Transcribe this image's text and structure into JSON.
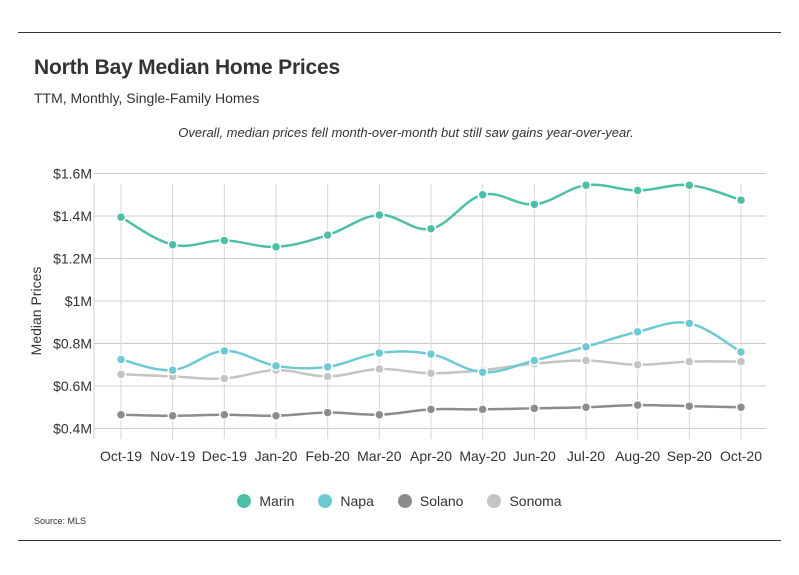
{
  "title": "North Bay Median Home Prices",
  "subtitle": "TTM, Monthly, Single-Family Homes",
  "note": "Overall, median prices fell month-over-month but still saw gains year-over-year.",
  "source": "Source:  MLS",
  "colors": {
    "Marin": "#4dbfa8",
    "Napa": "#6ecad2",
    "Solano": "#8c8c8c",
    "Sonoma": "#c4c4c4"
  },
  "chart_data": {
    "type": "line",
    "title": "North Bay Median Home Prices",
    "subtitle": "TTM, Monthly, Single-Family Homes",
    "ylabel": "Median Prices",
    "xlabel": "",
    "categories": [
      "Oct-19",
      "Nov-19",
      "Dec-19",
      "Jan-20",
      "Feb-20",
      "Mar-20",
      "Apr-20",
      "May-20",
      "Jun-20",
      "Jul-20",
      "Aug-20",
      "Sep-20",
      "Oct-20"
    ],
    "yticks": [
      {
        "value": 0.4,
        "label": "$0.4M"
      },
      {
        "value": 0.6,
        "label": "$0.6M"
      },
      {
        "value": 0.8,
        "label": "$0.8M"
      },
      {
        "value": 1.0,
        "label": "$1M"
      },
      {
        "value": 1.2,
        "label": "$1.2M"
      },
      {
        "value": 1.4,
        "label": "$1.4M"
      },
      {
        "value": 1.6,
        "label": "$1.6M"
      }
    ],
    "ylim": [
      0.35,
      1.6
    ],
    "grid": true,
    "legend_position": "bottom",
    "series": [
      {
        "name": "Marin",
        "values": [
          1.395,
          1.265,
          1.285,
          1.255,
          1.31,
          1.405,
          1.34,
          1.5,
          1.455,
          1.545,
          1.52,
          1.545,
          1.475
        ]
      },
      {
        "name": "Napa",
        "values": [
          0.725,
          0.675,
          0.765,
          0.695,
          0.69,
          0.755,
          0.75,
          0.665,
          0.72,
          0.785,
          0.855,
          0.895,
          0.76
        ]
      },
      {
        "name": "Solano",
        "values": [
          0.465,
          0.46,
          0.465,
          0.46,
          0.475,
          0.465,
          0.49,
          0.49,
          0.495,
          0.5,
          0.51,
          0.505,
          0.5
        ]
      },
      {
        "name": "Sonoma",
        "values": [
          0.655,
          0.645,
          0.635,
          0.675,
          0.645,
          0.68,
          0.66,
          0.675,
          0.705,
          0.72,
          0.7,
          0.715,
          0.715
        ]
      }
    ]
  }
}
